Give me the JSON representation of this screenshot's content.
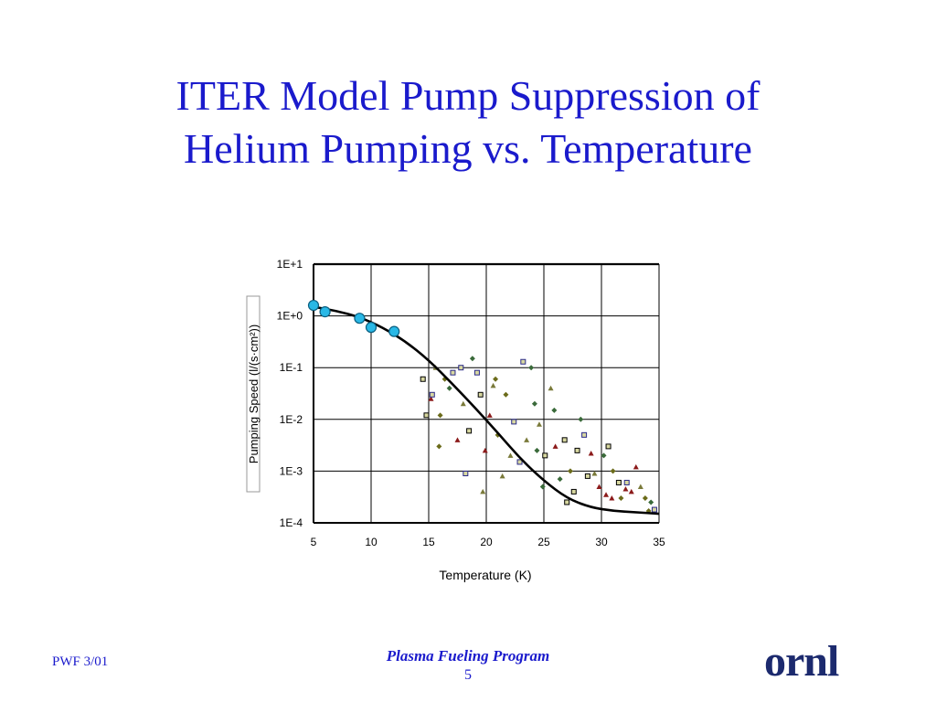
{
  "slide": {
    "title_line1": "ITER Model Pump Suppression of",
    "title_line2": "Helium Pumping vs. Temperature",
    "footer_left": "PWF 3/01",
    "footer_program": "Plasma Fueling Program",
    "page_number": "5",
    "logo_text": "ornl"
  },
  "colors": {
    "title": "#1a1acc",
    "curve": "#000000",
    "highlight_points": "#29b8e6",
    "scatter_palette": [
      "#000000",
      "#8b1a1a",
      "#6b6b1a",
      "#2a2a8a",
      "#7a7a3a",
      "#3a6a3a"
    ]
  },
  "chart_data": {
    "type": "scatter",
    "xlabel": "Temperature (K)",
    "ylabel": "Pumping Speed (l/(s·cm²))",
    "xlim": [
      5,
      35
    ],
    "ylim": [
      0.0001,
      10
    ],
    "y_scale": "log",
    "grid": true,
    "x_ticks": [
      "5",
      "10",
      "15",
      "20",
      "25",
      "30",
      "35"
    ],
    "y_ticks": [
      "1E+1",
      "1E+0",
      "1E-1",
      "1E-2",
      "1E-3",
      "1E-4"
    ],
    "series": [
      {
        "kind": "highlight_points",
        "x": [
          5,
          6,
          9,
          10,
          12
        ],
        "y": [
          1.6,
          1.2,
          0.9,
          0.6,
          0.5
        ]
      },
      {
        "kind": "fit_curve",
        "x": [
          5,
          7,
          9,
          11,
          13,
          15,
          17,
          19,
          21,
          23,
          25,
          27,
          29,
          31,
          33,
          35
        ],
        "y": [
          1.5,
          1.25,
          0.95,
          0.6,
          0.32,
          0.14,
          0.05,
          0.017,
          0.0055,
          0.0017,
          0.00065,
          0.0003,
          0.0002,
          0.00017,
          0.00016,
          0.00015
        ]
      },
      {
        "kind": "measurements",
        "x": [
          14.5,
          15.2,
          16.0,
          17.1,
          18.0,
          18.8,
          19.5,
          20.3,
          21.0,
          22.4,
          23.5,
          24.2,
          25.1,
          26.0,
          27.3,
          28.5,
          29.4,
          30.2,
          31.5,
          32.6,
          33.8,
          34.6,
          15.6,
          16.8,
          18.5,
          19.9,
          21.7,
          22.9,
          24.6,
          26.4,
          27.9,
          29.8,
          31.0,
          32.2,
          33.4,
          34.3,
          14.8,
          17.5,
          20.8,
          23.2,
          25.6,
          28.2,
          30.6,
          33.0,
          15.9,
          18.2,
          21.4,
          24.9,
          27.6,
          30.9,
          16.4,
          19.2,
          22.1,
          25.9,
          28.8,
          32.1,
          34.1,
          17.8,
          20.6,
          23.9,
          26.8,
          29.1,
          31.7,
          15.3,
          19.7,
          24.4,
          27.0,
          30.4
        ],
        "y": [
          0.06,
          0.025,
          0.012,
          0.08,
          0.02,
          0.15,
          0.03,
          0.012,
          0.005,
          0.009,
          0.004,
          0.02,
          0.002,
          0.003,
          0.001,
          0.005,
          0.0009,
          0.002,
          0.0006,
          0.0004,
          0.0003,
          0.00018,
          0.1,
          0.04,
          0.006,
          0.0025,
          0.03,
          0.0015,
          0.008,
          0.0007,
          0.0025,
          0.0005,
          0.001,
          0.0006,
          0.0005,
          0.00025,
          0.012,
          0.004,
          0.06,
          0.13,
          0.04,
          0.01,
          0.003,
          0.0012,
          0.003,
          0.0009,
          0.0008,
          0.0005,
          0.0004,
          0.0003,
          0.06,
          0.08,
          0.002,
          0.015,
          0.0008,
          0.00045,
          0.00017,
          0.1,
          0.045,
          0.1,
          0.004,
          0.0022,
          0.0003,
          0.03,
          0.0004,
          0.0025,
          0.00025,
          0.00035
        ]
      }
    ]
  }
}
